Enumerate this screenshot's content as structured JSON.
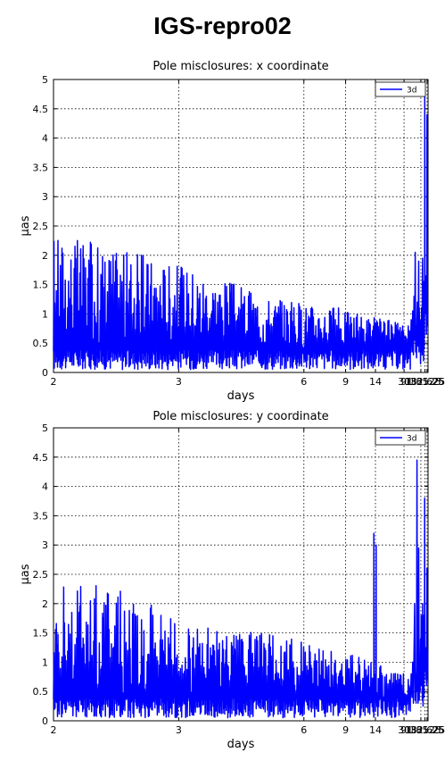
{
  "figure_title": "IGS-repro02",
  "colors": {
    "line": "#0000ff",
    "axis": "#000000",
    "grid": "#000000"
  },
  "chart_data": [
    {
      "type": "line",
      "title": "Pole misclosures: x coordinate",
      "xlabel": "days",
      "ylabel": "μas",
      "x_scale": "reciprocal (frequency), increasing period to the right",
      "xlim": [
        2,
        730
      ],
      "ylim": [
        0,
        5
      ],
      "grid": true,
      "legend_position": "top-right",
      "x_ticks": [
        "2",
        "3",
        "6",
        "9",
        "14",
        "30",
        "91.3125",
        "182.625",
        "365.25"
      ],
      "x_tick_values": [
        2,
        3,
        6,
        9,
        14,
        30,
        91.3125,
        182.625,
        365.25
      ],
      "y_ticks": [
        "0",
        "0.5",
        "1",
        "1.5",
        "2",
        "2.5",
        "3",
        "3.5",
        "4",
        "4.5",
        "5"
      ],
      "series": [
        {
          "name": "3d",
          "noise_section": {
            "from_days": 2,
            "to_days": 40,
            "typical_max": [
              2.4,
              2.1,
              1.8,
              1.3,
              1.1,
              0.8
            ],
            "min": 0.05
          },
          "points": [
            [
              40,
              0.3
            ],
            [
              42,
              0.9
            ],
            [
              44,
              0.35
            ],
            [
              46,
              1.05
            ],
            [
              48,
              0.3
            ],
            [
              50,
              1.3
            ],
            [
              52,
              0.55
            ],
            [
              54,
              2.05
            ],
            [
              56,
              0.35
            ],
            [
              58,
              0.8
            ],
            [
              60,
              0.25
            ],
            [
              62,
              0.9
            ],
            [
              64,
              1.2
            ],
            [
              66,
              0.45
            ],
            [
              68,
              0.8
            ],
            [
              70,
              1.0
            ],
            [
              72,
              1.9
            ],
            [
              74,
              0.35
            ],
            [
              76,
              1.1
            ],
            [
              80,
              0.6
            ],
            [
              84,
              0.85
            ],
            [
              88,
              0.15
            ],
            [
              91,
              0.9
            ],
            [
              95,
              0.35
            ],
            [
              100,
              1.1
            ],
            [
              104,
              0.5
            ],
            [
              108,
              0.3
            ],
            [
              112,
              1.6
            ],
            [
              116,
              1.95
            ],
            [
              120,
              0.75
            ],
            [
              124,
              0.3
            ],
            [
              130,
              1.0
            ],
            [
              135,
              0.2
            ],
            [
              140,
              0.55
            ],
            [
              145,
              1.55
            ],
            [
              150,
              0.4
            ],
            [
              155,
              1.0
            ],
            [
              160,
              0.6
            ],
            [
              165,
              1.05
            ],
            [
              170,
              1.9
            ],
            [
              175,
              4.7
            ],
            [
              180,
              3.3
            ],
            [
              185,
              1.2
            ],
            [
              195,
              1.0
            ],
            [
              210,
              1.1
            ],
            [
              225,
              1.0
            ],
            [
              240,
              1.4
            ],
            [
              255,
              1.65
            ],
            [
              275,
              0.65
            ],
            [
              300,
              0.75
            ],
            [
              325,
              1.45
            ],
            [
              345,
              0.8
            ],
            [
              358,
              2.6
            ],
            [
              365,
              4.4
            ],
            [
              375,
              3.1
            ],
            [
              385,
              2.45
            ],
            [
              410,
              2.1
            ],
            [
              450,
              1.2
            ],
            [
              490,
              0.85
            ],
            [
              540,
              1.0
            ],
            [
              600,
              0.95
            ]
          ]
        }
      ]
    },
    {
      "type": "line",
      "title": "Pole misclosures: y coordinate",
      "xlabel": "days",
      "ylabel": "μas",
      "x_scale": "reciprocal (frequency), increasing period to the right",
      "xlim": [
        2,
        730
      ],
      "ylim": [
        0,
        5
      ],
      "grid": true,
      "legend_position": "top-right",
      "x_ticks": [
        "2",
        "3",
        "6",
        "9",
        "14",
        "30",
        "91.3125",
        "182.625",
        "365.25"
      ],
      "x_tick_values": [
        2,
        3,
        6,
        9,
        14,
        30,
        91.3125,
        182.625,
        365.25
      ],
      "y_ticks": [
        "0",
        "0.5",
        "1",
        "1.5",
        "2",
        "2.5",
        "3",
        "3.5",
        "4",
        "4.5",
        "5"
      ],
      "series": [
        {
          "name": "3d",
          "noise_section": {
            "from_days": 2,
            "to_days": 40,
            "typical_max": [
              2.6,
              2.2,
              1.6,
              1.5,
              1.2,
              0.8
            ],
            "min": 0.05
          },
          "points": [
            [
              13.3,
              0.6
            ],
            [
              13.6,
              3.2
            ],
            [
              13.9,
              0.5
            ],
            [
              14.2,
              3.0
            ],
            [
              14.6,
              0.4
            ],
            [
              40,
              0.35
            ],
            [
              42,
              0.8
            ],
            [
              44,
              0.4
            ],
            [
              46,
              1.0
            ],
            [
              48,
              0.3
            ],
            [
              50,
              1.2
            ],
            [
              52,
              2.0
            ],
            [
              54,
              0.35
            ],
            [
              56,
              0.8
            ],
            [
              58,
              0.3
            ],
            [
              60,
              0.9
            ],
            [
              62,
              4.45
            ],
            [
              64,
              0.5
            ],
            [
              66,
              0.9
            ],
            [
              68,
              0.3
            ],
            [
              72,
              2.95
            ],
            [
              76,
              0.35
            ],
            [
              80,
              1.0
            ],
            [
              84,
              0.5
            ],
            [
              88,
              1.4
            ],
            [
              91,
              0.6
            ],
            [
              95,
              1.8
            ],
            [
              100,
              1.2
            ],
            [
              104,
              0.6
            ],
            [
              108,
              1.5
            ],
            [
              112,
              0.35
            ],
            [
              116,
              2.0
            ],
            [
              120,
              0.8
            ],
            [
              124,
              0.25
            ],
            [
              130,
              1.0
            ],
            [
              135,
              0.5
            ],
            [
              140,
              1.8
            ],
            [
              145,
              0.4
            ],
            [
              150,
              1.1
            ],
            [
              155,
              1.5
            ],
            [
              160,
              0.7
            ],
            [
              165,
              1.05
            ],
            [
              170,
              3.8
            ],
            [
              175,
              2.1
            ],
            [
              185,
              1.3
            ],
            [
              195,
              0.85
            ],
            [
              210,
              1.25
            ],
            [
              225,
              0.9
            ],
            [
              240,
              1.1
            ],
            [
              255,
              0.7
            ],
            [
              275,
              0.9
            ],
            [
              300,
              0.6
            ],
            [
              325,
              0.95
            ],
            [
              345,
              2.6
            ],
            [
              358,
              2.3
            ],
            [
              375,
              1.5
            ],
            [
              400,
              1.45
            ],
            [
              430,
              0.9
            ],
            [
              470,
              0.7
            ],
            [
              520,
              1.2
            ],
            [
              580,
              0.85
            ]
          ]
        }
      ]
    }
  ]
}
